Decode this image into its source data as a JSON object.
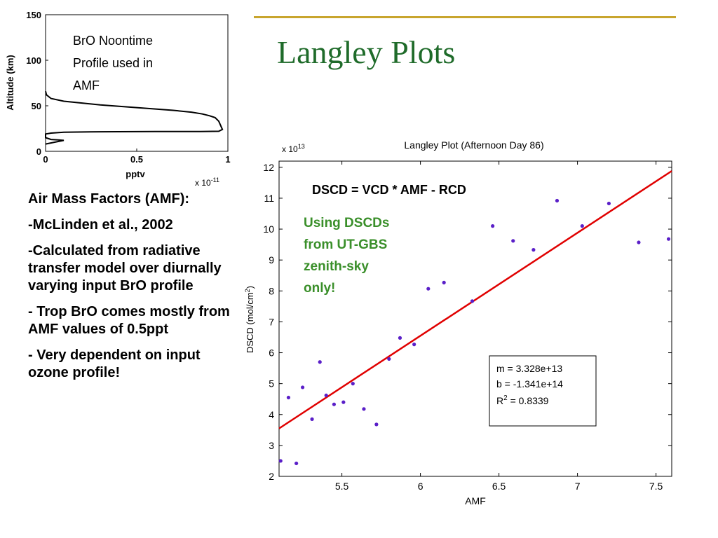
{
  "slide": {
    "title": "Langley Plots",
    "bullets": [
      "Air Mass Factors (AMF):",
      "-McLinden et al., 2002",
      "-Calculated from radiative transfer model over diurnally varying input BrO profile",
      "- Trop BrO comes mostly from AMF values of 0.5ppt",
      "- Very dependent on input ozone profile!"
    ]
  },
  "chart_data": [
    {
      "type": "line",
      "title": "",
      "annotation_lines": [
        "BrO Noontime",
        "Profile used in",
        "AMF"
      ],
      "xlabel": "pptv",
      "ylabel": "Altitude (km)",
      "x_multiplier": "x 10",
      "x_multiplier_exp": "-11",
      "xlim": [
        0,
        1
      ],
      "ylim": [
        0,
        150
      ],
      "xticks": [
        "0",
        "0.5",
        "1"
      ],
      "yticks": [
        "0",
        "50",
        "100",
        "150"
      ],
      "series": [
        {
          "color": "#000000",
          "x": [
            0.0,
            0.005,
            0.03,
            0.1,
            0.2,
            0.3,
            0.5,
            0.7,
            0.8,
            0.86,
            0.9,
            0.93,
            0.95,
            0.97,
            0.95,
            0.85,
            0.6,
            0.3,
            0.1,
            0.03,
            0.0,
            0.0,
            0.03,
            0.07,
            0.1,
            0.0
          ],
          "y": [
            66,
            62,
            58,
            55,
            53,
            51,
            48,
            45,
            43,
            41,
            39,
            37,
            33,
            24,
            22,
            21.8,
            21.8,
            21.5,
            21,
            20,
            19,
            15,
            13,
            12.5,
            12,
            8
          ]
        }
      ]
    },
    {
      "type": "scatter",
      "title": "Langley Plot (Afternoon Day 86)",
      "xlabel": "AMF",
      "ylabel": "DSCD (mol/cm",
      "ylabel_sup": "2",
      "ylabel_end": ")",
      "y_multiplier": "x 10",
      "y_multiplier_exp": "13",
      "xlim": [
        5.1,
        7.6
      ],
      "ylim": [
        2,
        12.2
      ],
      "xticks": [
        "5.5",
        "6",
        "6.5",
        "7",
        "7.5"
      ],
      "yticks": [
        "2",
        "3",
        "4",
        "5",
        "6",
        "7",
        "8",
        "9",
        "10",
        "11",
        "12"
      ],
      "point_color": "#5a1fc8",
      "fit_color": "#e00000",
      "points": [
        [
          5.11,
          2.5
        ],
        [
          5.16,
          4.55
        ],
        [
          5.21,
          2.42
        ],
        [
          5.25,
          4.88
        ],
        [
          5.31,
          3.85
        ],
        [
          5.36,
          5.7
        ],
        [
          5.4,
          4.62
        ],
        [
          5.45,
          4.33
        ],
        [
          5.51,
          4.4
        ],
        [
          5.57,
          5.0
        ],
        [
          5.64,
          4.18
        ],
        [
          5.72,
          3.68
        ],
        [
          5.8,
          5.8
        ],
        [
          5.87,
          6.48
        ],
        [
          5.96,
          6.27
        ],
        [
          6.05,
          8.07
        ],
        [
          6.15,
          8.27
        ],
        [
          6.33,
          7.67
        ],
        [
          6.46,
          10.1
        ],
        [
          6.59,
          9.62
        ],
        [
          6.72,
          9.33
        ],
        [
          6.87,
          10.92
        ],
        [
          7.03,
          10.1
        ],
        [
          7.2,
          10.83
        ],
        [
          7.39,
          9.57
        ],
        [
          7.58,
          9.68
        ]
      ],
      "fit": {
        "slope_display": "3.328e+13",
        "intercept_display": "-1.341e+14",
        "x": [
          5.1,
          7.6
        ],
        "y": [
          3.55,
          11.88
        ]
      },
      "stats": {
        "m_label": "m = 3.328e+13",
        "b_label": "b = -1.341e+14",
        "r2_prefix": "R",
        "r2_sup": "2",
        "r2_value": " = 0.8339"
      },
      "equation": "DSCD = VCD * AMF - RCD",
      "note_lines": [
        "Using DSCDs",
        "from UT-GBS",
        "zenith-sky",
        "only!"
      ]
    }
  ]
}
